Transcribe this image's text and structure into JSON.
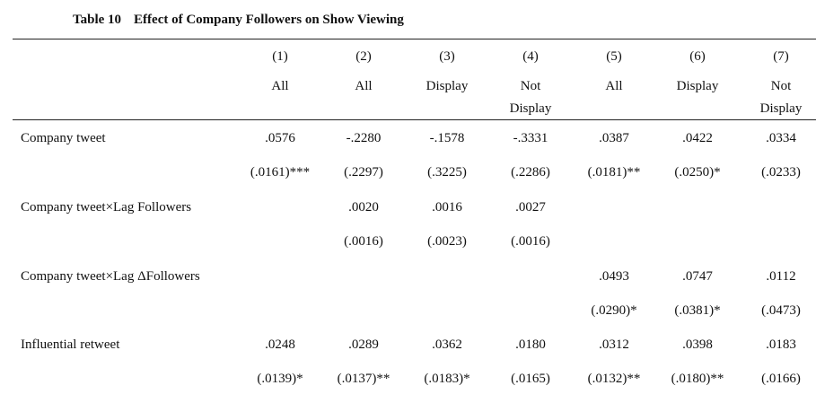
{
  "table": {
    "label": "Table 10",
    "title": "Effect of Company Followers on Show Viewing",
    "columns": [
      {
        "number": "(1)",
        "sample_line1": "All",
        "sample_line2": ""
      },
      {
        "number": "(2)",
        "sample_line1": "All",
        "sample_line2": ""
      },
      {
        "number": "(3)",
        "sample_line1": "Display",
        "sample_line2": ""
      },
      {
        "number": "(4)",
        "sample_line1": "Not",
        "sample_line2": "Display"
      },
      {
        "number": "(5)",
        "sample_line1": "All",
        "sample_line2": ""
      },
      {
        "number": "(6)",
        "sample_line1": "Display",
        "sample_line2": ""
      },
      {
        "number": "(7)",
        "sample_line1": "Not",
        "sample_line2": "Display"
      }
    ],
    "rows": [
      {
        "label": "Company tweet",
        "coef": [
          ".0576",
          "-.2280",
          "-.1578",
          "-.3331",
          ".0387",
          ".0422",
          ".0334"
        ],
        "se": [
          "(.0161)***",
          "(.2297)",
          "(.3225)",
          "(.2286)",
          "(.0181)**",
          "(.0250)*",
          "(.0233)"
        ]
      },
      {
        "label": "Company tweet×Lag Followers",
        "coef": [
          "",
          ".0020",
          ".0016",
          ".0027",
          "",
          "",
          ""
        ],
        "se": [
          "",
          "(.0016)",
          "(.0023)",
          "(.0016)",
          "",
          "",
          ""
        ]
      },
      {
        "label": "Company tweet×Lag ΔFollowers",
        "coef": [
          "",
          "",
          "",
          "",
          ".0493",
          ".0747",
          ".0112"
        ],
        "se": [
          "",
          "",
          "",
          "",
          "(.0290)*",
          "(.0381)*",
          "(.0473)"
        ]
      },
      {
        "label": "Influential retweet",
        "coef": [
          ".0248",
          ".0289",
          ".0362",
          ".0180",
          ".0312",
          ".0398",
          ".0183"
        ],
        "se": [
          "(.0139)*",
          "(.0137)**",
          "(.0183)*",
          "(.0165)",
          "(.0132)**",
          "(.0180)**",
          "(.0166)"
        ]
      }
    ]
  }
}
